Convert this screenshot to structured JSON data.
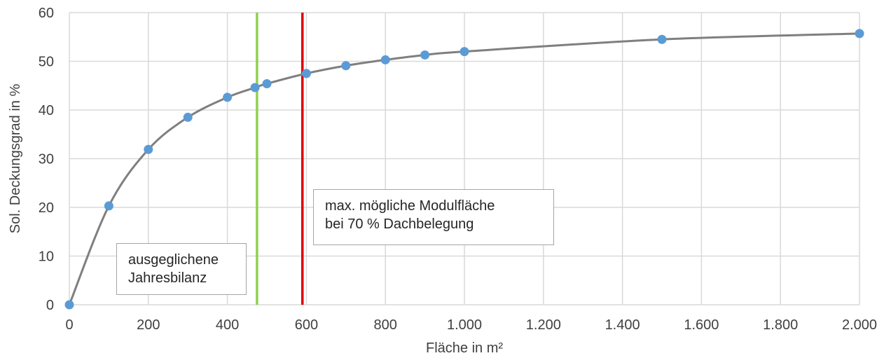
{
  "chart_data": {
    "type": "line",
    "xlabel": "Fläche in m²",
    "ylabel": "Sol. Deckungsgrad in %",
    "xlim": [
      0,
      2000
    ],
    "ylim": [
      0,
      60
    ],
    "x_ticks": [
      {
        "value": 0,
        "label": "0"
      },
      {
        "value": 200,
        "label": "200"
      },
      {
        "value": 400,
        "label": "400"
      },
      {
        "value": 600,
        "label": "600"
      },
      {
        "value": 800,
        "label": "800"
      },
      {
        "value": 1000,
        "label": "1.000"
      },
      {
        "value": 1200,
        "label": "1.200"
      },
      {
        "value": 1400,
        "label": "1.400"
      },
      {
        "value": 1600,
        "label": "1.600"
      },
      {
        "value": 1800,
        "label": "1.800"
      },
      {
        "value": 2000,
        "label": "2.000"
      }
    ],
    "y_ticks": [
      {
        "value": 0,
        "label": "0"
      },
      {
        "value": 10,
        "label": "10"
      },
      {
        "value": 20,
        "label": "20"
      },
      {
        "value": 30,
        "label": "30"
      },
      {
        "value": 40,
        "label": "40"
      },
      {
        "value": 50,
        "label": "50"
      },
      {
        "value": 60,
        "label": "60"
      }
    ],
    "grid": true,
    "series": [
      {
        "x": [
          0,
          100,
          200,
          300,
          400,
          470,
          500,
          600,
          700,
          800,
          900,
          1000,
          1500,
          2000
        ],
        "y": [
          0,
          20.3,
          31.9,
          38.5,
          42.6,
          44.6,
          45.4,
          47.5,
          49.1,
          50.3,
          51.3,
          52.0,
          54.5,
          55.7
        ],
        "line_color": "#7f7f7f",
        "marker_color": "#5b9bd5"
      }
    ],
    "vertical_lines": [
      {
        "x": 475,
        "color": "#92d050"
      },
      {
        "x": 590,
        "color": "#e00000"
      }
    ],
    "annotations": [
      {
        "lines": [
          "ausgeglichene",
          "Jahresbilanz"
        ]
      },
      {
        "lines": [
          "max. mögliche Modulfläche",
          "bei 70 % Dachbelegung"
        ]
      }
    ],
    "colors": {
      "grid": "#d9d9d9",
      "text": "#404040"
    }
  }
}
